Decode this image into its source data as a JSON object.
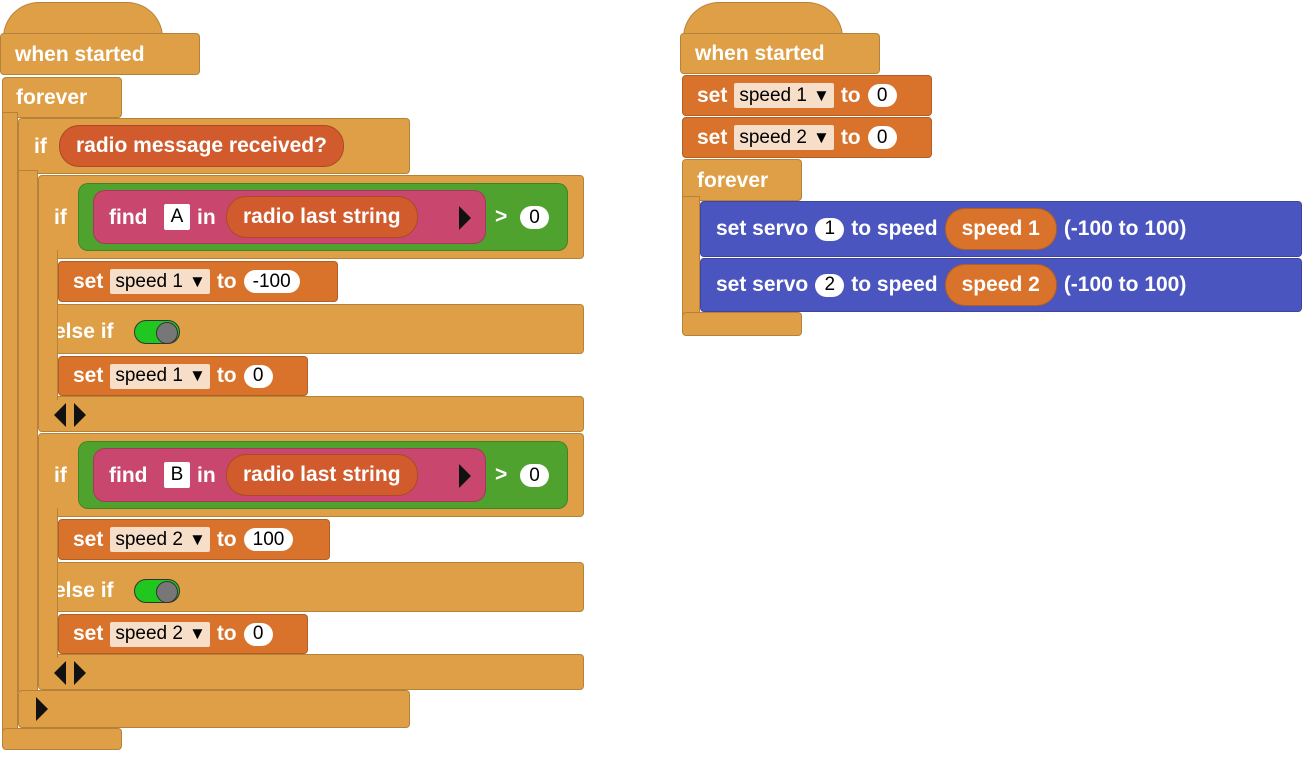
{
  "left_script": {
    "hat_label": "when started",
    "forever_label": "forever",
    "if_label": "if",
    "radio_received": "radio message received?",
    "block1": {
      "if_label": "if",
      "find_label": "find",
      "find_char": "A",
      "in_label": "in",
      "radio_string": "radio last string",
      "gt": ">",
      "compare_value": "0",
      "set_label": "set",
      "set_var": "speed 1",
      "to_label": "to",
      "set_value": "-100",
      "else_if_label": "else if",
      "else_set_label": "set",
      "else_set_var": "speed 1",
      "else_to_label": "to",
      "else_set_value": "0"
    },
    "block2": {
      "if_label": "if",
      "find_label": "find",
      "find_char": "B",
      "in_label": "in",
      "radio_string": "radio last string",
      "gt": ">",
      "compare_value": "0",
      "set_label": "set",
      "set_var": "speed 2",
      "to_label": "to",
      "set_value": "100",
      "else_if_label": "else if",
      "else_set_label": "set",
      "else_set_var": "speed 2",
      "else_to_label": "to",
      "else_set_value": "0"
    }
  },
  "right_script": {
    "hat_label": "when started",
    "init1": {
      "set_label": "set",
      "var": "speed 1",
      "to_label": "to",
      "value": "0"
    },
    "init2": {
      "set_label": "set",
      "var": "speed 2",
      "to_label": "to",
      "value": "0"
    },
    "forever_label": "forever",
    "servo1": {
      "label": "set servo",
      "port": "1",
      "to_speed": "to speed",
      "var": "speed 1",
      "range": "(-100 to 100)"
    },
    "servo2": {
      "label": "set servo",
      "port": "2",
      "to_speed": "to speed",
      "var": "speed 2",
      "range": "(-100 to 100)"
    }
  },
  "icons": {
    "dropdown": "▼"
  },
  "colors": {
    "control": "#DE9F47",
    "variables": "#D9732C",
    "servo": "#4B55BF",
    "predicate": "#D15B2D",
    "find": "#C9476E",
    "compare": "#4FA22E",
    "toggle_on": "#1FC71F"
  }
}
